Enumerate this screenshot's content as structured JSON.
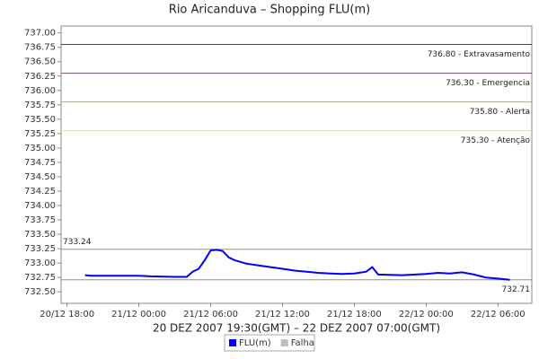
{
  "chart_data": {
    "type": "line",
    "title": "Rio Aricanduva – Shopping FLU(m)",
    "xlabel": "20 DEZ 2007 19:30(GMT) – 22 DEZ 2007 07:00(GMT)",
    "x": [
      "20/12 19:30",
      "20/12 20:00",
      "21/12 00:00",
      "21/12 01:00",
      "21/12 03:00",
      "21/12 04:00",
      "21/12 04:30",
      "21/12 05:00",
      "21/12 05:30",
      "21/12 06:00",
      "21/12 06:30",
      "21/12 07:00",
      "21/12 07:30",
      "21/12 08:00",
      "21/12 09:00",
      "21/12 10:00",
      "21/12 11:00",
      "21/12 12:00",
      "21/12 13:00",
      "21/12 14:00",
      "21/12 15:00",
      "21/12 16:00",
      "21/12 17:00",
      "21/12 18:00",
      "21/12 19:00",
      "21/12 19:30",
      "21/12 20:00",
      "21/12 22:00",
      "22/12 00:00",
      "22/12 01:00",
      "22/12 02:00",
      "22/12 03:00",
      "22/12 04:00",
      "22/12 05:00",
      "22/12 06:00",
      "22/12 07:00"
    ],
    "series": [
      {
        "name": "FLU(m)",
        "color": "#0000ff",
        "values": [
          732.79,
          732.78,
          732.78,
          732.77,
          732.76,
          732.76,
          732.85,
          732.9,
          733.05,
          733.22,
          733.23,
          733.21,
          733.1,
          733.05,
          732.99,
          732.96,
          732.93,
          732.9,
          732.87,
          732.85,
          732.83,
          732.82,
          732.81,
          732.82,
          732.85,
          732.93,
          732.8,
          732.79,
          732.81,
          732.83,
          732.82,
          732.84,
          732.8,
          732.75,
          732.73,
          732.71
        ]
      },
      {
        "name": "Falha",
        "color": "#c0c0c0",
        "values": [
          null,
          null,
          null,
          null,
          null,
          null,
          null,
          null,
          null,
          null,
          null,
          null,
          null,
          null,
          null,
          null,
          null,
          null,
          null,
          null,
          null,
          null,
          null,
          null,
          null,
          null,
          null,
          null,
          null,
          null,
          null,
          null,
          null,
          null,
          null,
          null
        ]
      }
    ],
    "thresholds": [
      {
        "value": 736.8,
        "label": "736.80 - Extravasamento",
        "color": "#e00000"
      },
      {
        "value": 736.3,
        "label": "736.30 - Emergencia",
        "color": "#e000e0"
      },
      {
        "value": 735.8,
        "label": "735.80 - Alerta",
        "color": "#f0a000"
      },
      {
        "value": 735.3,
        "label": "735.30 - Atenção",
        "color": "#f0f000"
      },
      {
        "value": 733.24,
        "label": "733.24",
        "color": "#909090"
      },
      {
        "value": 732.71,
        "label": "732.71",
        "color": "#909090"
      }
    ],
    "xlim": [
      "20/12 17:30",
      "22/12 08:50"
    ],
    "xticks": [
      "20/12 18:00",
      "21/12 00:00",
      "21/12 06:00",
      "21/12 12:00",
      "21/12 18:00",
      "22/12 00:00",
      "22/12 06:00"
    ],
    "ylim": [
      732.3,
      737.12
    ],
    "yticks": [
      {
        "value": 732.5,
        "label": "732.50"
      },
      {
        "value": 732.75,
        "label": "732.75"
      },
      {
        "value": 733,
        "label": "733.00"
      },
      {
        "value": 733.25,
        "label": "733.25"
      },
      {
        "value": 733.5,
        "label": "733.50"
      },
      {
        "value": 733.75,
        "label": "733.75"
      },
      {
        "value": 734,
        "label": "734.00"
      },
      {
        "value": 734.25,
        "label": "734.25"
      },
      {
        "value": 734.5,
        "label": "734.50"
      },
      {
        "value": 734.75,
        "label": "734.75"
      },
      {
        "value": 735,
        "label": "735.00"
      },
      {
        "value": 735.25,
        "label": "735.25"
      },
      {
        "value": 735.5,
        "label": "735.50"
      },
      {
        "value": 735.75,
        "label": "735.75"
      },
      {
        "value": 736,
        "label": "736.00"
      },
      {
        "value": 736.25,
        "label": "736.25"
      },
      {
        "value": 736.5,
        "label": "736.50"
      },
      {
        "value": 736.75,
        "label": "736.75"
      },
      {
        "value": 737,
        "label": "737.00"
      }
    ],
    "grid": false
  }
}
